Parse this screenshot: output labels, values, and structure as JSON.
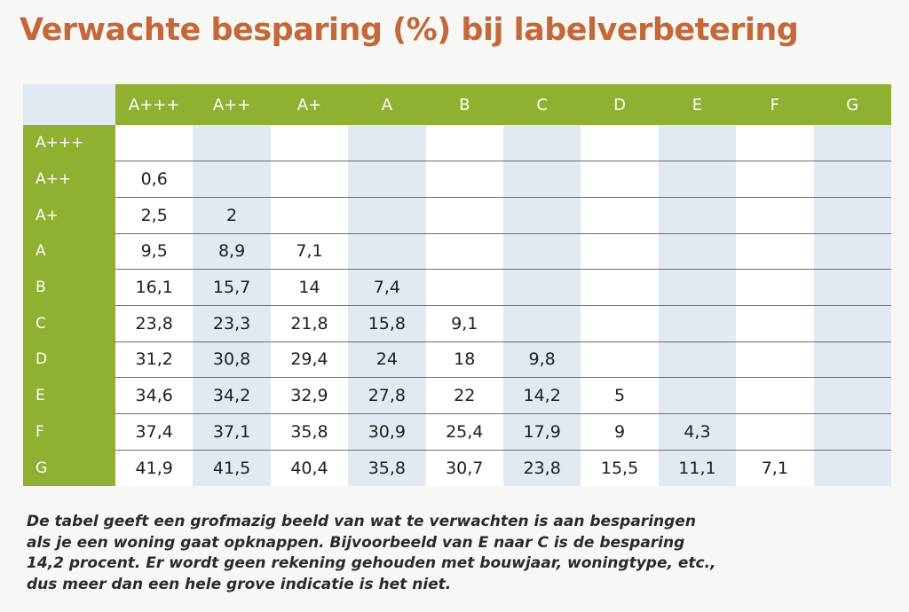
{
  "title": "Verwachte besparing (%) bij labelverbetering",
  "table": {
    "columns": [
      "A+++",
      "A++",
      "A+",
      "A",
      "B",
      "C",
      "D",
      "E",
      "F",
      "G"
    ],
    "rows": [
      {
        "label": "A+++",
        "values": [
          "",
          "",
          "",
          "",
          "",
          "",
          "",
          "",
          "",
          ""
        ]
      },
      {
        "label": "A++",
        "values": [
          "0,6",
          "",
          "",
          "",
          "",
          "",
          "",
          "",
          "",
          ""
        ]
      },
      {
        "label": "A+",
        "values": [
          "2,5",
          "2",
          "",
          "",
          "",
          "",
          "",
          "",
          "",
          ""
        ]
      },
      {
        "label": "A",
        "values": [
          "9,5",
          "8,9",
          "7,1",
          "",
          "",
          "",
          "",
          "",
          "",
          ""
        ]
      },
      {
        "label": "B",
        "values": [
          "16,1",
          "15,7",
          "14",
          "7,4",
          "",
          "",
          "",
          "",
          "",
          ""
        ]
      },
      {
        "label": "C",
        "values": [
          "23,8",
          "23,3",
          "21,8",
          "15,8",
          "9,1",
          "",
          "",
          "",
          "",
          ""
        ]
      },
      {
        "label": "D",
        "values": [
          "31,2",
          "30,8",
          "29,4",
          "24",
          "18",
          "9,8",
          "",
          "",
          "",
          ""
        ]
      },
      {
        "label": "E",
        "values": [
          "34,6",
          "34,2",
          "32,9",
          "27,8",
          "22",
          "14,2",
          "5",
          "",
          "",
          ""
        ]
      },
      {
        "label": "F",
        "values": [
          "37,4",
          "37,1",
          "35,8",
          "30,9",
          "25,4",
          "17,9",
          "9",
          "4,3",
          "",
          ""
        ]
      },
      {
        "label": "G",
        "values": [
          "41,9",
          "41,5",
          "40,4",
          "35,8",
          "30,7",
          "23,8",
          "15,5",
          "11,1",
          "7,1",
          ""
        ]
      }
    ]
  },
  "caption": {
    "lines": [
      "De tabel geeft een grofmazig beeld van wat te verwachten is aan besparingen",
      "als je een woning gaat opknappen. Bijvoorbeeld van E naar C is de besparing",
      "14,2 procent. Er wordt geen rekening gehouden met bouwjaar, woningtype, etc.,",
      "dus meer dan een hele grove indicatie is het niet."
    ]
  },
  "colors": {
    "title": "#c4683a",
    "header_green": "#8fb031",
    "header_text": "#ffffff",
    "stripe_blue": "#e2e9f0",
    "cell_white": "#ffffff",
    "text": "#1e1e1e"
  }
}
